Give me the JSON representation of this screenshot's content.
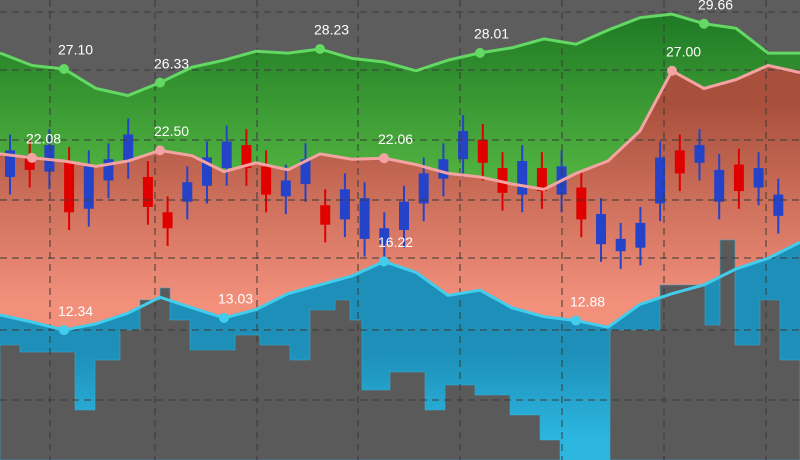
{
  "chart_data": [
    {
      "type": "area",
      "categories": [
        null,
        null,
        null,
        null,
        null,
        null,
        null,
        null,
        null,
        null,
        null,
        null,
        null,
        null,
        null,
        null,
        null,
        null,
        null,
        null,
        null,
        null,
        null,
        null,
        null,
        null
      ],
      "ylim": [
        5,
        31
      ],
      "series": [
        {
          "color": "#2f8f2f",
          "line_color": "#63d863",
          "values": [
            28.0,
            27.3,
            27.1,
            26.0,
            25.6,
            26.33,
            27.2,
            27.6,
            28.1,
            28.0,
            28.23,
            27.7,
            27.5,
            27.0,
            27.6,
            28.01,
            28.3,
            28.8,
            28.5,
            29.3,
            30.0,
            30.2,
            29.66,
            29.4,
            28.0,
            28.0
          ],
          "value_labels": [
            null,
            null,
            "27.10",
            null,
            null,
            "26.33",
            null,
            null,
            null,
            null,
            "28.23",
            null,
            null,
            null,
            null,
            "28.01",
            null,
            null,
            null,
            null,
            null,
            null,
            "29.66",
            null,
            null,
            null
          ]
        },
        {
          "color": "#b35a44",
          "line_color": "#f4a3a3",
          "values": [
            22.3,
            22.08,
            21.9,
            21.6,
            21.9,
            22.5,
            22.2,
            21.3,
            21.8,
            21.4,
            22.3,
            22.0,
            22.06,
            21.7,
            21.2,
            21.0,
            20.6,
            20.3,
            21.2,
            21.9,
            23.6,
            27.0,
            26.0,
            26.5,
            27.3,
            26.9
          ],
          "value_labels": [
            null,
            "22.08",
            null,
            null,
            null,
            "22.50",
            null,
            null,
            null,
            null,
            null,
            null,
            "22.06",
            null,
            null,
            null,
            null,
            null,
            null,
            null,
            null,
            "27.00",
            null,
            null,
            null,
            null
          ]
        },
        {
          "color": "#1fa5cc",
          "line_color": "#41cdeb",
          "values": [
            13.2,
            12.8,
            12.34,
            12.7,
            13.3,
            14.2,
            13.6,
            13.03,
            13.5,
            14.4,
            14.9,
            15.4,
            16.22,
            15.6,
            14.3,
            14.6,
            13.6,
            13.1,
            12.88,
            12.5,
            13.8,
            14.4,
            14.9,
            15.8,
            16.4,
            17.3
          ],
          "value_labels": [
            null,
            null,
            "12.34",
            null,
            null,
            null,
            null,
            "13.03",
            null,
            null,
            null,
            null,
            "16.22",
            null,
            null,
            null,
            null,
            null,
            "12.88",
            null,
            null,
            null,
            null,
            null,
            null,
            null
          ]
        }
      ]
    },
    {
      "type": "candlestick",
      "categories": [
        null,
        null,
        null,
        null,
        null,
        null,
        null,
        null,
        null,
        null,
        null,
        null,
        null,
        null,
        null,
        null,
        null,
        null,
        null,
        null,
        null,
        null,
        null,
        null,
        null,
        null,
        null,
        null,
        null,
        null,
        null,
        null,
        null,
        null,
        null,
        null,
        null,
        null,
        null,
        null
      ],
      "ylim": [
        5,
        31
      ],
      "up_color": "#2443c8",
      "down_color": "#e00000",
      "open": [
        21.0,
        22.2,
        21.3,
        21.8,
        19.2,
        20.8,
        21.9,
        21.0,
        19.0,
        19.6,
        20.5,
        21.5,
        22.8,
        21.6,
        19.9,
        20.6,
        19.4,
        18.6,
        17.5,
        17.2,
        18.0,
        19.5,
        20.9,
        22.0,
        23.1,
        21.5,
        20.0,
        21.5,
        20.0,
        20.4,
        17.2,
        16.8,
        17.0,
        19.5,
        22.5,
        21.8,
        19.6,
        21.7,
        20.4,
        18.8
      ],
      "high": [
        23.4,
        23.1,
        23.7,
        22.7,
        22.5,
        22.9,
        24.3,
        21.9,
        19.9,
        21.6,
        23.0,
        23.9,
        23.7,
        22.5,
        21.7,
        22.9,
        20.3,
        21.2,
        20.7,
        19.0,
        20.5,
        22.1,
        22.9,
        24.5,
        24.0,
        22.4,
        22.8,
        22.4,
        22.5,
        21.3,
        19.8,
        18.4,
        19.3,
        23.0,
        23.4,
        23.7,
        22.3,
        22.6,
        22.4,
        20.9
      ],
      "low": [
        20.0,
        20.4,
        20.3,
        18.0,
        18.2,
        19.8,
        20.9,
        18.3,
        17.1,
        18.6,
        19.5,
        20.5,
        20.5,
        19.0,
        18.9,
        19.6,
        17.3,
        17.6,
        16.5,
        16.2,
        17.0,
        18.5,
        19.9,
        21.0,
        20.8,
        19.1,
        19.0,
        19.2,
        19.0,
        17.6,
        16.2,
        15.8,
        16.0,
        18.5,
        20.2,
        20.8,
        18.6,
        19.2,
        19.4,
        17.8
      ],
      "close": [
        22.5,
        21.4,
        22.8,
        19.0,
        21.6,
        22.0,
        23.4,
        19.3,
        18.1,
        20.7,
        22.1,
        23.0,
        21.5,
        20.0,
        20.8,
        22.0,
        18.3,
        20.3,
        19.8,
        18.1,
        19.6,
        21.2,
        22.0,
        23.6,
        21.8,
        20.1,
        21.9,
        20.2,
        21.6,
        18.6,
        18.9,
        17.5,
        18.4,
        22.1,
        21.2,
        22.8,
        21.4,
        20.2,
        21.5,
        20.0
      ]
    }
  ]
}
